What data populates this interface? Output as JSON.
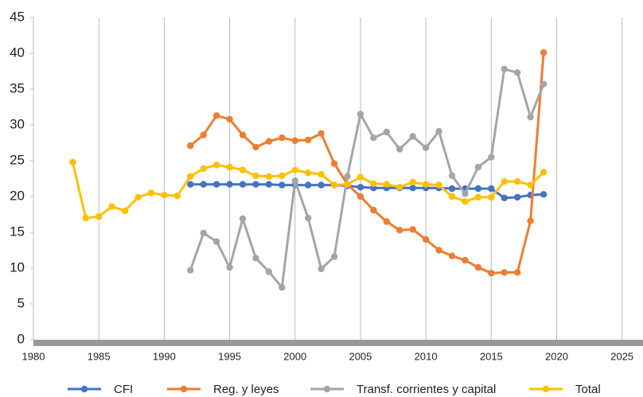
{
  "chart_data": {
    "type": "line",
    "x": [
      1983,
      1984,
      1985,
      1986,
      1987,
      1988,
      1989,
      1990,
      1991,
      1992,
      1993,
      1994,
      1995,
      1996,
      1997,
      1998,
      1999,
      2000,
      2001,
      2002,
      2003,
      2004,
      2005,
      2006,
      2007,
      2008,
      2009,
      2010,
      2011,
      2012,
      2013,
      2014,
      2015,
      2016,
      2017,
      2018,
      2019
    ],
    "series": [
      {
        "name": "CFI",
        "color": "#4472c4",
        "values": [
          null,
          null,
          null,
          null,
          null,
          null,
          null,
          null,
          null,
          21.7,
          21.7,
          21.7,
          21.7,
          21.7,
          21.7,
          21.7,
          21.6,
          21.6,
          21.6,
          21.6,
          21.6,
          21.5,
          21.3,
          21.2,
          21.2,
          21.2,
          21.2,
          21.2,
          21.2,
          21.1,
          21.1,
          21.1,
          21.1,
          19.8,
          19.9,
          20.2,
          20.3
        ]
      },
      {
        "name": "Reg. y leyes",
        "color": "#ed7d31",
        "values": [
          null,
          null,
          null,
          null,
          null,
          null,
          null,
          null,
          null,
          27.1,
          28.6,
          31.3,
          30.8,
          28.6,
          26.9,
          27.7,
          28.2,
          27.8,
          27.9,
          28.8,
          24.6,
          21.7,
          20.0,
          18.1,
          16.5,
          15.3,
          15.4,
          14.0,
          12.5,
          11.7,
          11.1,
          10.1,
          9.3,
          9.4,
          9.4,
          16.6,
          40.1
        ]
      },
      {
        "name": "Transf. corrientes y capital",
        "color": "#a5a5a5",
        "values": [
          null,
          null,
          null,
          null,
          null,
          null,
          null,
          null,
          null,
          9.7,
          14.9,
          13.7,
          10.1,
          16.9,
          11.4,
          9.5,
          7.3,
          22.2,
          17.0,
          9.9,
          11.6,
          22.8,
          31.5,
          28.2,
          29.0,
          26.6,
          28.4,
          26.8,
          29.1,
          22.9,
          20.4,
          24.1,
          25.5,
          37.8,
          37.3,
          31.1,
          35.7
        ]
      },
      {
        "name": "Total",
        "color": "#ffc000",
        "values": [
          24.8,
          17.0,
          17.2,
          18.6,
          18.0,
          19.9,
          20.5,
          20.2,
          20.1,
          22.8,
          23.9,
          24.4,
          24.1,
          23.7,
          22.9,
          22.8,
          22.9,
          23.7,
          23.3,
          23.1,
          21.6,
          21.7,
          22.7,
          21.8,
          21.7,
          21.3,
          22.0,
          21.7,
          21.6,
          20.0,
          19.3,
          19.9,
          19.9,
          22.1,
          22.1,
          21.6,
          23.4
        ]
      }
    ],
    "xlim": [
      1980,
      2026.6
    ],
    "xticks": [
      1980,
      1985,
      1990,
      1995,
      2000,
      2005,
      2010,
      2015,
      2020,
      2025
    ],
    "ylim": [
      0,
      45
    ],
    "yticks": [
      0,
      5,
      10,
      15,
      20,
      25,
      30,
      35,
      40,
      45
    ],
    "grid": true,
    "legend": "bottom"
  }
}
